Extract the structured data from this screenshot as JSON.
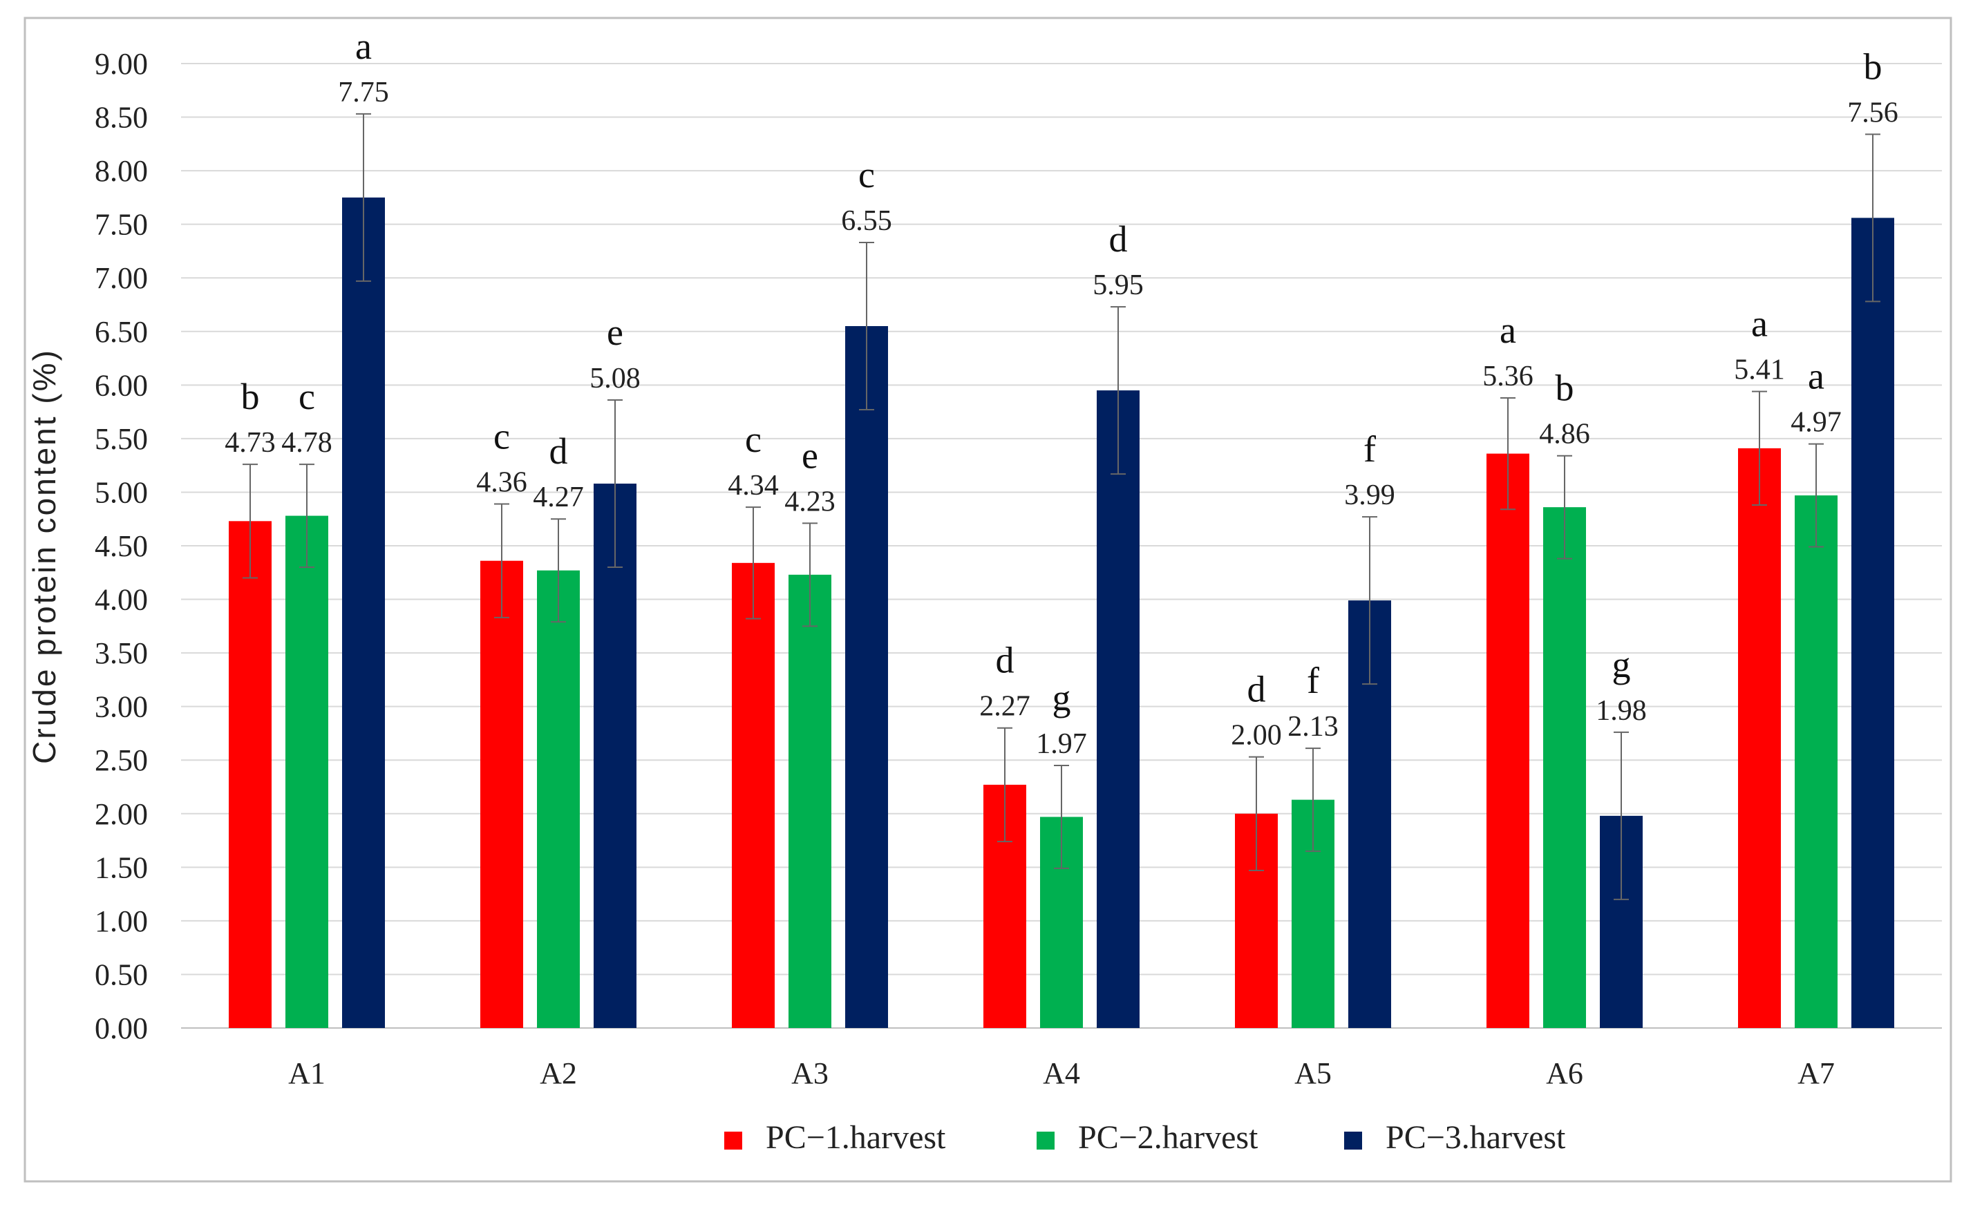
{
  "chart_data": {
    "type": "bar",
    "title": "",
    "xlabel": "",
    "ylabel": "Crude protein content (%)",
    "ylim": [
      0,
      9
    ],
    "ytick_step": 0.5,
    "ytick_labels": [
      "0.00",
      "0.50",
      "1.00",
      "1.50",
      "2.00",
      "2.50",
      "3.00",
      "3.50",
      "4.00",
      "4.50",
      "5.00",
      "5.50",
      "6.00",
      "6.50",
      "7.00",
      "7.50",
      "8.00",
      "8.50",
      "9.00"
    ],
    "grid": true,
    "legend_position": "bottom",
    "categories": [
      "A1",
      "A2",
      "A3",
      "A4",
      "A5",
      "A6",
      "A7"
    ],
    "series": [
      {
        "name": "PC−1.harvest",
        "color": "#ff0000",
        "values": [
          4.73,
          4.36,
          4.34,
          2.27,
          2.0,
          5.36,
          5.41
        ],
        "value_labels": [
          "4.73",
          "4.36",
          "4.34",
          "2.27",
          "2.00",
          "5.36",
          "5.41"
        ],
        "error": [
          0.53,
          0.53,
          0.52,
          0.53,
          0.53,
          0.52,
          0.53
        ],
        "letters": [
          "b",
          "c",
          "c",
          "d",
          "d",
          "a",
          "a"
        ]
      },
      {
        "name": "PC−2.harvest",
        "color": "#00b050",
        "values": [
          4.78,
          4.27,
          4.23,
          1.97,
          2.13,
          4.86,
          4.97
        ],
        "value_labels": [
          "4.78",
          "4.27",
          "4.23",
          "1.97",
          "2.13",
          "4.86",
          "4.97"
        ],
        "error": [
          0.48,
          0.48,
          0.48,
          0.48,
          0.48,
          0.48,
          0.48
        ],
        "letters": [
          "c",
          "d",
          "e",
          "g",
          "f",
          "b",
          "a"
        ]
      },
      {
        "name": "PC−3.harvest",
        "color": "#002060",
        "values": [
          7.75,
          5.08,
          6.55,
          5.95,
          3.99,
          1.98,
          7.56
        ],
        "value_labels": [
          "7.75",
          "5.08",
          "6.55",
          "5.95",
          "3.99",
          "1.98",
          "7.56"
        ],
        "error": [
          0.78,
          0.78,
          0.78,
          0.78,
          0.78,
          0.78,
          0.78
        ],
        "letters": [
          "a",
          "e",
          "c",
          "d",
          "f",
          "g",
          "b"
        ]
      }
    ]
  }
}
